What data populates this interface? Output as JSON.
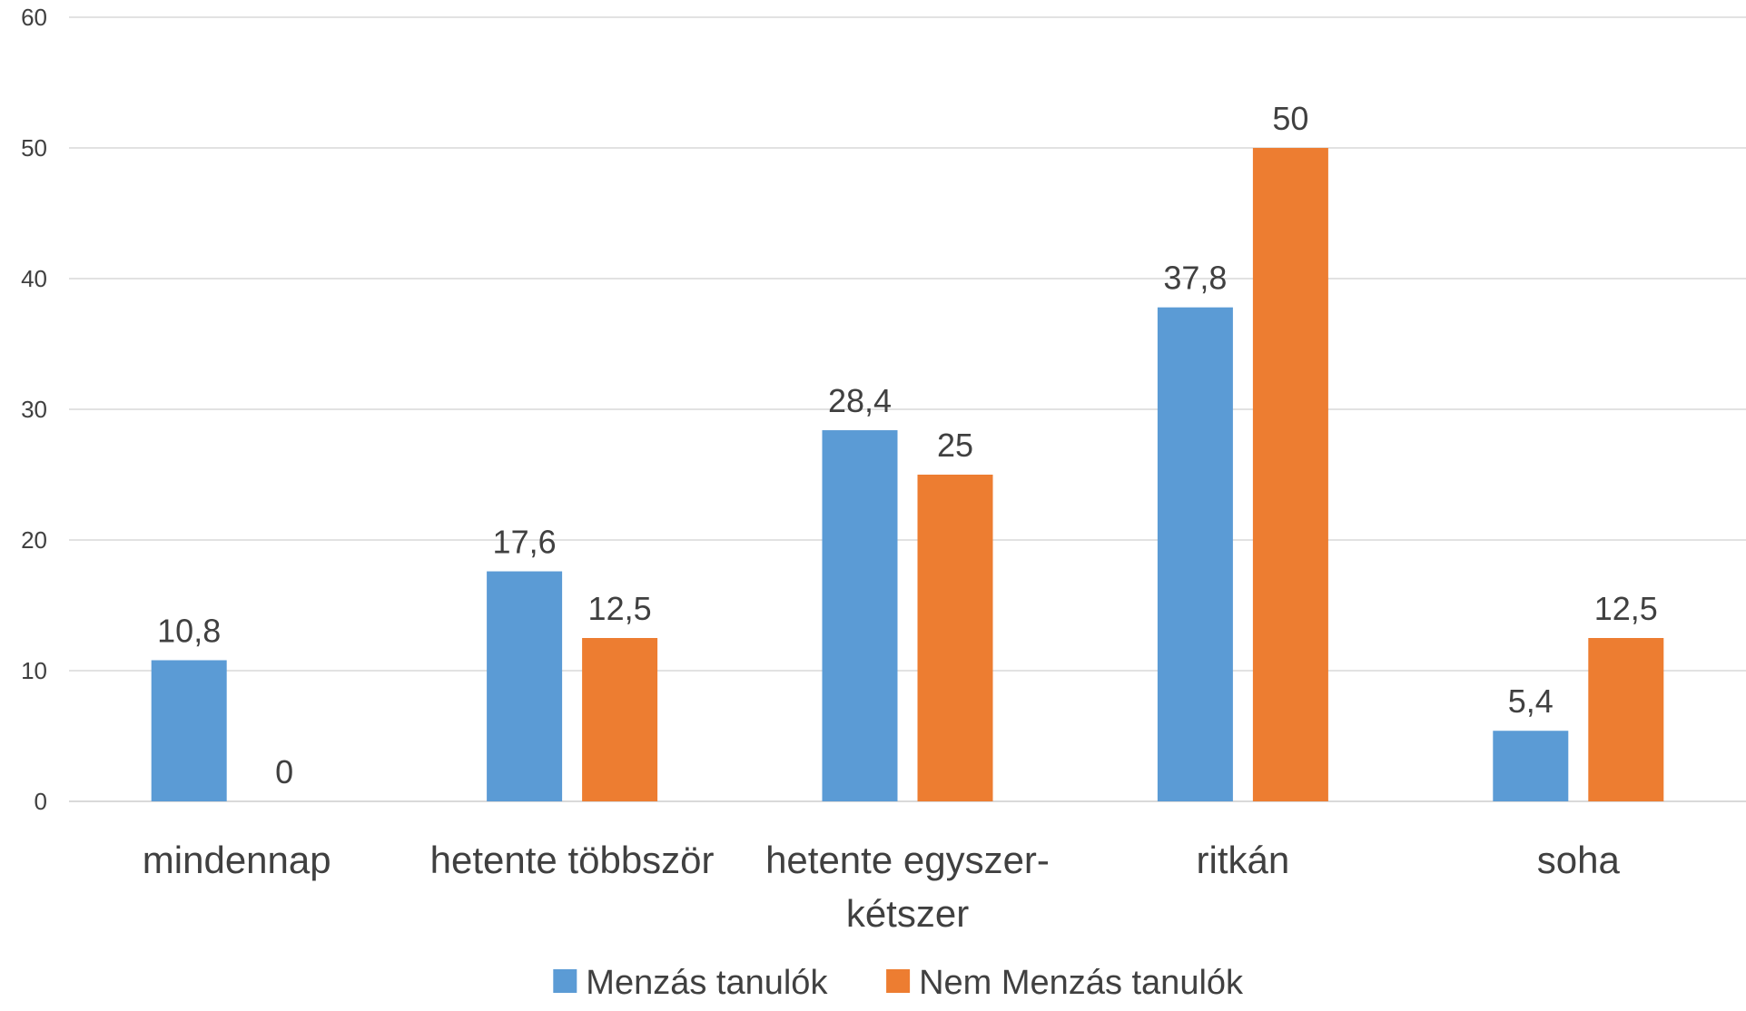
{
  "chart_data": {
    "type": "bar",
    "title": "",
    "xlabel": "",
    "ylabel": "",
    "ylim": [
      0,
      60
    ],
    "yticks": [
      0,
      10,
      20,
      30,
      40,
      50,
      60
    ],
    "categories": [
      [
        "mindennap"
      ],
      [
        "hetente többször"
      ],
      [
        "hetente egyszer-",
        "kétszer"
      ],
      [
        "ritkán"
      ],
      [
        "soha"
      ]
    ],
    "series": [
      {
        "name": "Menzás tanulók",
        "color": "#5b9bd5",
        "values": [
          10.8,
          17.6,
          28.4,
          37.8,
          5.4
        ],
        "labels": [
          "10,8",
          "17,6",
          "28,4",
          "37,8",
          "5,4"
        ]
      },
      {
        "name": "Nem Menzás tanulók",
        "color": "#ed7d31",
        "values": [
          0,
          12.5,
          25,
          50,
          12.5
        ],
        "labels": [
          "0",
          "12,5",
          "25",
          "50",
          "12,5"
        ]
      }
    ],
    "grid": true,
    "legend_position": "bottom"
  }
}
